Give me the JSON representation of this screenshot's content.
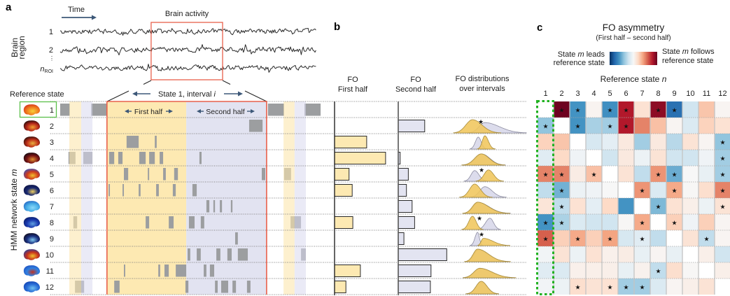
{
  "figure": {
    "panel_labels": [
      "a",
      "b",
      "c"
    ]
  },
  "colors": {
    "first_half": "#fde9b2",
    "second_half": "#e2e3f1",
    "first_half_faint": "#fbe6ad",
    "second_half_faint": "#d9d9ee",
    "state_block": "#9c9ea0",
    "interval_border": "#e8604c",
    "reference_highlight": "#5cbf4a",
    "heatmap_highlight": "#22b222",
    "bar_first": "#fde9b2",
    "bar_second": "#e3e4f1",
    "dist_first": "#f0c65c",
    "dist_second": "#dcdcec",
    "arrow": "#3d5878",
    "trace": "#2a2a2a"
  },
  "panel_a": {
    "time_label": "Time",
    "brain_activity_title": "Brain activity",
    "brain_region_label": [
      "Brain",
      "region"
    ],
    "region_labels": {
      "first": "1",
      "second": "2",
      "ellipsis": "⋮",
      "last_main": "n",
      "last_sub": "ROI"
    },
    "reference_state_label": "Reference state",
    "interval_label_text": "State 1, interval ",
    "interval_label_var": "i",
    "first_half_label": "First half",
    "second_half_label": "Second half",
    "state_axis_label_text": "HMM network state ",
    "state_axis_label_var": "m",
    "states": [
      {
        "label": "1",
        "brain_colors": [
          "#f7d13a",
          "#f08020",
          "#d22a1a"
        ]
      },
      {
        "label": "2",
        "brain_colors": [
          "#f0a030",
          "#b8281a",
          "#140808"
        ]
      },
      {
        "label": "3",
        "brain_colors": [
          "#e8b040",
          "#c0301a",
          "#180808"
        ]
      },
      {
        "label": "4",
        "brain_colors": [
          "#e09030",
          "#7a1414",
          "#08080f"
        ]
      },
      {
        "label": "5",
        "brain_colors": [
          "#f0c030",
          "#d03a1a",
          "#3050c0"
        ]
      },
      {
        "label": "6",
        "brain_colors": [
          "#f0d060",
          "#1a2a70",
          "#0a1040"
        ]
      },
      {
        "label": "7",
        "brain_colors": [
          "#8ad8f8",
          "#4ab0e8",
          "#2060c0"
        ]
      },
      {
        "label": "8",
        "brain_colors": [
          "#60a0e0",
          "#1a3ab0",
          "#0a1a60"
        ]
      },
      {
        "label": "9",
        "brain_colors": [
          "#80c8f0",
          "#1a3080",
          "#100a14"
        ]
      },
      {
        "label": "10",
        "brain_colors": [
          "#f0c030",
          "#c8301a",
          "#2040a0"
        ]
      },
      {
        "label": "11",
        "brain_colors": [
          "#c03020",
          "#3080e0",
          "#2050c0"
        ]
      },
      {
        "label": "12",
        "brain_colors": [
          "#70c0f0",
          "#2a70d8",
          "#1040b0"
        ]
      }
    ]
  },
  "panel_b": {
    "first_half_header": [
      "FO",
      "First half"
    ],
    "second_half_header": [
      "FO",
      "Second half"
    ],
    "distribution_header": [
      "FO distributions",
      "over intervals"
    ]
  },
  "panel_c": {
    "title": "FO asymmetry",
    "subtitle": "(First half – second half)",
    "legend_left": {
      "pre": "State ",
      "var": "m",
      "post": " leads",
      "line2": "reference state"
    },
    "legend_right": {
      "pre": "State ",
      "var": "m",
      "post": " follows",
      "line2": "reference state"
    },
    "x_axis_label": {
      "text": "Reference state ",
      "var": "n"
    },
    "colormap": [
      "#053061",
      "#2166ac",
      "#4393c3",
      "#92c5de",
      "#d1e5f0",
      "#f7f7f7",
      "#fddbc7",
      "#f4a582",
      "#d6604d",
      "#b2182b",
      "#67001f"
    ]
  },
  "chart_data": [
    {
      "id": "brain-activity",
      "type": "line",
      "title": "Brain activity",
      "xlabel": "Time",
      "ylabel": "Brain region",
      "series": [
        {
          "name": "1"
        },
        {
          "name": "2"
        },
        {
          "name": "n_ROI"
        }
      ],
      "xlim": [
        0,
        100
      ],
      "highlight_window": [
        35.5,
        63.4
      ],
      "values_note": "noisy activity traces; individual samples not legible"
    },
    {
      "id": "state-timecourse",
      "type": "bar",
      "subtype": "timeline",
      "xlabel": "Time",
      "ylabel": "HMM network state m",
      "xlim": [
        0,
        100
      ],
      "reference_state": "1",
      "interval": {
        "label": "State 1, interval i",
        "start": 17.4,
        "mid": 46.9,
        "end": 76.8
      },
      "prev_interval": {
        "start": 3.4,
        "mid": 7.8,
        "end": 12.0
      },
      "next_interval": {
        "start": 83.1,
        "mid": 87.2,
        "end": 91.4
      },
      "rows": [
        {
          "state": "1",
          "segments": [
            [
              0,
              3.6
            ],
            [
              11.5,
              17.2
            ],
            [
              77.3,
              83.3
            ],
            [
              90.9,
              96.9
            ]
          ]
        },
        {
          "state": "2",
          "segments": [
            [
              70.3,
              75.3
            ]
          ]
        },
        {
          "state": "3",
          "segments": [
            [
              24.7,
              29.2
            ],
            [
              35.2,
              35.9
            ]
          ]
        },
        {
          "state": "4",
          "segments": [
            [
              3.1,
              5.7
            ],
            [
              8.6,
              12.0
            ],
            [
              18.2,
              20.1
            ],
            [
              21.6,
              23.2
            ],
            [
              29.4,
              31.8
            ],
            [
              33.1,
              35.2
            ],
            [
              37.0,
              38.3
            ],
            [
              51.8,
              52.6
            ]
          ]
        },
        {
          "state": "5",
          "segments": [
            [
              23.7,
              25.3
            ],
            [
              32.6,
              33.1
            ],
            [
              38.3,
              39.3
            ],
            [
              42.4,
              43.8
            ],
            [
              75.0,
              76.3
            ],
            [
              83.3,
              85.9
            ]
          ]
        },
        {
          "state": "6",
          "segments": [
            [
              18.0,
              18.5
            ],
            [
              23.2,
              23.7
            ],
            [
              29.2,
              29.9
            ],
            [
              35.7,
              36.7
            ],
            [
              41.9,
              43.0
            ],
            [
              49.2,
              50.8
            ]
          ]
        },
        {
          "state": "7",
          "segments": [
            [
              54.4,
              55.5
            ],
            [
              57.0,
              57.6
            ],
            [
              59.4,
              60.2
            ],
            [
              63.5,
              64.1
            ]
          ]
        },
        {
          "state": "8",
          "segments": [
            [
              4.9,
              6.3
            ],
            [
              31.8,
              33.1
            ],
            [
              40.4,
              42.2
            ],
            [
              47.9,
              50.0
            ],
            [
              52.3,
              53.6
            ],
            [
              85.7,
              89.6
            ]
          ]
        },
        {
          "state": "9",
          "segments": [
            [
              65.1,
              66.1
            ]
          ]
        },
        {
          "state": "10",
          "segments": [
            [
              47.4,
              48.4
            ],
            [
              50.8,
              52.3
            ],
            [
              58.1,
              59.6
            ],
            [
              62.2,
              63.8
            ],
            [
              66.1,
              69.8
            ],
            [
              89.6,
              91.4
            ]
          ]
        },
        {
          "state": "11",
          "segments": [
            [
              23.7,
              24.2
            ],
            [
              36.5,
              37.2
            ],
            [
              38.8,
              40.4
            ],
            [
              43.0,
              46.9
            ],
            [
              53.4,
              54.4
            ],
            [
              55.7,
              57.3
            ]
          ]
        },
        {
          "state": "12",
          "segments": [
            [
              5.5,
              8.9
            ],
            [
              20.1,
              22.1
            ],
            [
              46.6,
              47.7
            ],
            [
              57.6,
              58.6
            ],
            [
              59.9,
              62.5
            ],
            [
              64.1,
              65.4
            ],
            [
              69.5,
              70.8
            ]
          ]
        }
      ]
    },
    {
      "id": "fo-first-half",
      "type": "bar",
      "orientation": "horizontal",
      "title": "FO First half",
      "categories": [
        "1",
        "2",
        "3",
        "4",
        "5",
        "6",
        "7",
        "8",
        "9",
        "10",
        "11",
        "12"
      ],
      "values": [
        0,
        0,
        0.51,
        0.81,
        0.23,
        0.28,
        0,
        0.29,
        0,
        0,
        0.41,
        0.18
      ],
      "xlim": [
        0,
        1
      ]
    },
    {
      "id": "fo-second-half",
      "type": "bar",
      "orientation": "horizontal",
      "title": "FO Second half",
      "categories": [
        "1",
        "2",
        "3",
        "4",
        "5",
        "6",
        "7",
        "8",
        "9",
        "10",
        "11",
        "12"
      ],
      "values": [
        0,
        0.42,
        0,
        0.03,
        0.16,
        0.13,
        0.22,
        0.26,
        0.09,
        0.77,
        0.52,
        0.51
      ],
      "xlim": [
        0,
        1
      ]
    },
    {
      "id": "fo-distributions",
      "type": "area",
      "title": "FO distributions over intervals",
      "legend": [
        "First half",
        "Second half"
      ],
      "xlim": [
        0,
        1
      ],
      "rows": [
        {
          "state": "1",
          "first_half": null,
          "second_half": null,
          "significant": false
        },
        {
          "state": "2",
          "first_half": {
            "mode": 0.26,
            "sd_left": 0.09,
            "sd_right": 0.13,
            "peak": 1.0
          },
          "second_half": {
            "mode": 0.43,
            "sd_left": 0.08,
            "sd_right": 0.2,
            "peak": 0.78
          },
          "significant": true,
          "star_x": 0.375
        },
        {
          "state": "3",
          "first_half": {
            "mode": 0.43,
            "sd_left": 0.035,
            "sd_right": 0.048,
            "peak": 1.0
          },
          "second_half": {
            "mode": 0.34,
            "sd_left": 0.04,
            "sd_right": 0.04,
            "peak": 0.9
          },
          "significant": false
        },
        {
          "state": "4",
          "first_half": {
            "mode": 0.38,
            "sd_left": 0.09,
            "sd_right": 0.11,
            "peak": 0.85
          },
          "second_half": {
            "mode": 0.39,
            "sd_left": 0.09,
            "sd_right": 0.11,
            "peak": 0.83
          },
          "significant": false
        },
        {
          "state": "5",
          "first_half": {
            "mode": 0.48,
            "sd_left": 0.06,
            "sd_right": 0.07,
            "peak": 0.85
          },
          "second_half": {
            "mode": 0.29,
            "sd_left": 0.05,
            "sd_right": 0.06,
            "peak": 0.8
          },
          "significant": true,
          "star_x": 0.385
        },
        {
          "state": "6",
          "first_half": {
            "mode": 0.29,
            "sd_left": 0.07,
            "sd_right": 0.08,
            "peak": 1.0
          },
          "second_half": {
            "mode": 0.43,
            "sd_left": 0.07,
            "sd_right": 0.1,
            "peak": 0.8
          },
          "significant": false
        },
        {
          "state": "7",
          "first_half": {
            "mode": 0.33,
            "sd_left": 0.07,
            "sd_right": 0.15,
            "peak": 0.85
          },
          "second_half": {
            "mode": 0.34,
            "sd_left": 0.07,
            "sd_right": 0.15,
            "peak": 0.82
          },
          "significant": false
        },
        {
          "state": "8",
          "first_half": {
            "mode": 0.26,
            "sd_left": 0.05,
            "sd_right": 0.05,
            "peak": 1.0
          },
          "second_half": {
            "mode": 0.5,
            "sd_left": 0.06,
            "sd_right": 0.05,
            "peak": 0.85
          },
          "significant": true,
          "star_x": 0.356
        },
        {
          "state": "9",
          "first_half": {
            "mode": 0.41,
            "sd_left": 0.03,
            "sd_right": 0.13,
            "peak": 0.55
          },
          "second_half": {
            "mode": 0.33,
            "sd_left": 0.035,
            "sd_right": 0.025,
            "peak": 1.0
          },
          "significant": true,
          "star_x": 0.385
        },
        {
          "state": "10",
          "first_half": {
            "mode": 0.33,
            "sd_left": 0.06,
            "sd_right": 0.15,
            "peak": 0.95
          },
          "second_half": {
            "mode": 0.34,
            "sd_left": 0.06,
            "sd_right": 0.14,
            "peak": 0.9
          },
          "significant": false
        },
        {
          "state": "11",
          "first_half": {
            "mode": 0.36,
            "sd_left": 0.08,
            "sd_right": 0.17,
            "peak": 0.72
          },
          "second_half": {
            "mode": 0.36,
            "sd_left": 0.08,
            "sd_right": 0.16,
            "peak": 0.7
          },
          "significant": false
        },
        {
          "state": "12",
          "first_half": {
            "mode": 0.38,
            "sd_left": 0.07,
            "sd_right": 0.08,
            "peak": 0.95
          },
          "second_half": {
            "mode": 0.38,
            "sd_left": 0.07,
            "sd_right": 0.08,
            "peak": 0.93
          },
          "significant": false
        }
      ]
    },
    {
      "id": "fo-asymmetry",
      "type": "heatmap",
      "title": "FO asymmetry",
      "subtitle": "(First half – second half)",
      "xlabel": "Reference state n",
      "ylabel": "HMM network state m",
      "x_categories": [
        "1",
        "2",
        "3",
        "4",
        "5",
        "6",
        "7",
        "8",
        "9",
        "10",
        "11",
        "12"
      ],
      "y_categories": [
        "1",
        "2",
        "3",
        "4",
        "5",
        "6",
        "7",
        "8",
        "9",
        "10",
        "11",
        "12"
      ],
      "zlim": [
        -1,
        1
      ],
      "colorbar_left": "State m leads reference state",
      "colorbar_right": "State m follows reference state",
      "highlighted_column": "1",
      "values": [
        [
          null,
          0.98,
          -0.6,
          0.03,
          -0.62,
          0.8,
          0.15,
          0.9,
          -0.75,
          -0.2,
          0.28,
          0.02
        ],
        [
          -0.4,
          null,
          -0.6,
          -0.33,
          -0.35,
          0.8,
          0.5,
          0.3,
          0.02,
          -0.15,
          0.23,
          0.15
        ],
        [
          0.23,
          0.28,
          null,
          -0.17,
          -0.1,
          0.1,
          -0.35,
          0.1,
          -0.28,
          0.14,
          0.02,
          -0.4
        ],
        [
          -0.12,
          0.2,
          -0.04,
          null,
          -0.2,
          0.1,
          -0.06,
          0.14,
          -0.2,
          -0.2,
          -0.04,
          -0.35
        ],
        [
          0.5,
          0.5,
          0.08,
          0.3,
          null,
          0.14,
          -0.25,
          0.45,
          -0.5,
          0.0,
          -0.08,
          -0.35
        ],
        [
          -0.25,
          -0.48,
          -0.06,
          -0.04,
          0.0,
          null,
          0.45,
          -0.15,
          0.38,
          0.01,
          0.17,
          0.5
        ],
        [
          0.13,
          -0.25,
          0.15,
          -0.1,
          0.2,
          -0.6,
          null,
          -0.45,
          0.15,
          0.06,
          -0.06,
          0.14
        ],
        [
          -0.6,
          -0.32,
          -0.15,
          -0.2,
          -0.2,
          0.01,
          0.38,
          null,
          0.24,
          -0.04,
          0.24,
          0.02
        ],
        [
          0.6,
          0.24,
          0.38,
          0.24,
          0.4,
          -0.17,
          -0.12,
          -0.25,
          null,
          0.14,
          -0.25,
          0.02
        ],
        [
          -0.03,
          0.14,
          -0.06,
          0.15,
          0.05,
          0.08,
          -0.08,
          0.02,
          -0.08,
          null,
          0.06,
          -0.2
        ],
        [
          -0.12,
          -0.15,
          0.05,
          0.06,
          0.06,
          -0.08,
          0.04,
          -0.25,
          0.17,
          0.01,
          null,
          0.06
        ],
        [
          -0.03,
          -0.06,
          0.17,
          0.14,
          0.15,
          -0.35,
          -0.35,
          -0.15,
          0.02,
          0.06,
          0.14,
          null
        ]
      ],
      "significant_cols": [
        [
          2,
          3,
          5,
          6,
          8,
          9
        ],
        [
          1,
          3,
          5,
          6
        ],
        [
          12
        ],
        [
          12
        ],
        [
          1,
          2,
          4,
          8,
          9,
          12
        ],
        [
          2,
          7,
          9,
          12
        ],
        [
          2,
          8,
          12
        ],
        [
          1,
          2,
          7,
          9
        ],
        [
          1,
          3,
          5,
          7,
          11
        ],
        [],
        [
          8
        ],
        [
          3,
          5,
          6,
          7
        ]
      ]
    }
  ]
}
